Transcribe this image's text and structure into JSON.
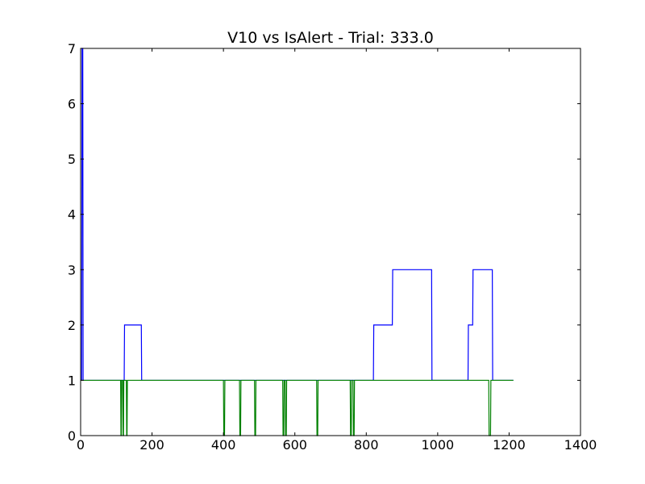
{
  "chart_data": {
    "type": "line",
    "title": "V10 vs IsAlert - Trial: 333.0",
    "xlabel": "",
    "ylabel": "",
    "xlim": [
      0,
      1400
    ],
    "ylim": [
      0,
      7
    ],
    "x_ticks": [
      0,
      200,
      400,
      600,
      800,
      1000,
      1200,
      1400
    ],
    "y_ticks": [
      0,
      1,
      2,
      3,
      4,
      5,
      6,
      7
    ],
    "grid": false,
    "legend": "none",
    "series": [
      {
        "color": "#0000ff",
        "points": [
          [
            0,
            1
          ],
          [
            3,
            1
          ],
          [
            4,
            7
          ],
          [
            6,
            7
          ],
          [
            7,
            1
          ],
          [
            122,
            1
          ],
          [
            123,
            2
          ],
          [
            170,
            2
          ],
          [
            171,
            1
          ],
          [
            820,
            1
          ],
          [
            821,
            2
          ],
          [
            873,
            2
          ],
          [
            874,
            3
          ],
          [
            983,
            3
          ],
          [
            984,
            1
          ],
          [
            1085,
            1
          ],
          [
            1086,
            2
          ],
          [
            1098,
            2
          ],
          [
            1099,
            3
          ],
          [
            1153,
            3
          ],
          [
            1154,
            1
          ],
          [
            1212,
            1
          ]
        ]
      },
      {
        "color": "#008000",
        "points": [
          [
            0,
            1
          ],
          [
            112,
            1
          ],
          [
            113,
            0
          ],
          [
            114,
            0
          ],
          [
            115,
            1
          ],
          [
            118,
            1
          ],
          [
            119,
            0
          ],
          [
            120,
            0
          ],
          [
            121,
            1
          ],
          [
            128,
            1
          ],
          [
            129,
            0
          ],
          [
            130,
            0
          ],
          [
            131,
            1
          ],
          [
            400,
            1
          ],
          [
            401,
            0
          ],
          [
            403,
            0
          ],
          [
            404,
            1
          ],
          [
            445,
            1
          ],
          [
            446,
            0
          ],
          [
            448,
            0
          ],
          [
            449,
            1
          ],
          [
            487,
            1
          ],
          [
            488,
            0
          ],
          [
            490,
            0
          ],
          [
            491,
            1
          ],
          [
            566,
            1
          ],
          [
            567,
            0
          ],
          [
            569,
            0
          ],
          [
            570,
            1
          ],
          [
            573,
            1
          ],
          [
            574,
            0
          ],
          [
            576,
            0
          ],
          [
            577,
            1
          ],
          [
            661,
            1
          ],
          [
            662,
            0
          ],
          [
            664,
            0
          ],
          [
            665,
            1
          ],
          [
            755,
            1
          ],
          [
            756,
            0
          ],
          [
            758,
            0
          ],
          [
            759,
            1
          ],
          [
            763,
            1
          ],
          [
            764,
            0
          ],
          [
            766,
            0
          ],
          [
            767,
            1
          ],
          [
            1143,
            1
          ],
          [
            1144,
            0
          ],
          [
            1148,
            0
          ],
          [
            1149,
            1
          ],
          [
            1212,
            1
          ]
        ]
      }
    ]
  }
}
